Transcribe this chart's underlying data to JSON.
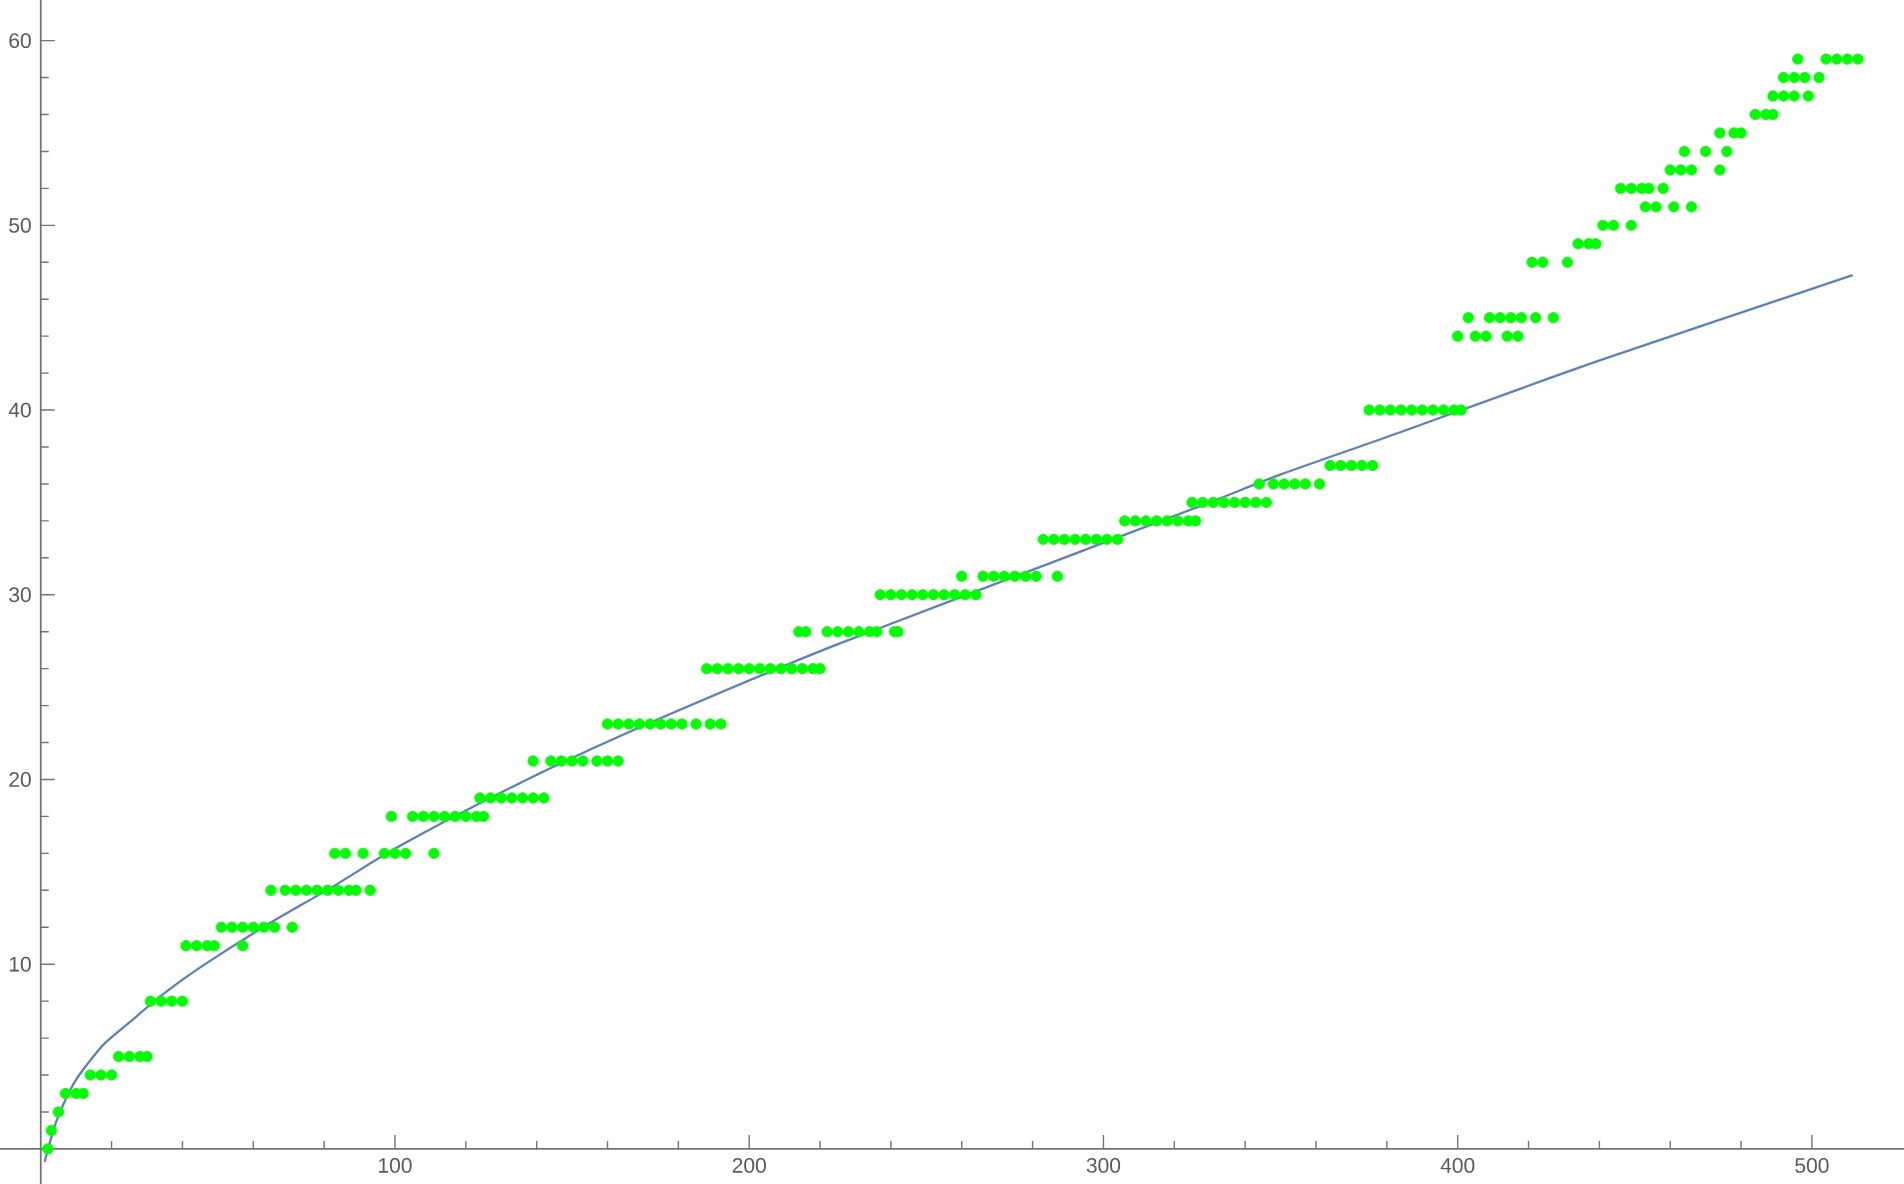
{
  "chart_data": {
    "type": "scatter",
    "xlim": [
      -11.5,
      526
    ],
    "ylim": [
      -1.9,
      62.2
    ],
    "xticks": [
      {
        "value": 20,
        "label": null
      },
      {
        "value": 40,
        "label": null
      },
      {
        "value": 60,
        "label": null
      },
      {
        "value": 80,
        "label": null
      },
      100,
      {
        "value": 120,
        "label": null
      },
      {
        "value": 140,
        "label": null
      },
      {
        "value": 160,
        "label": null
      },
      {
        "value": 180,
        "label": null
      },
      200,
      {
        "value": 220,
        "label": null
      },
      {
        "value": 240,
        "label": null
      },
      {
        "value": 260,
        "label": null
      },
      {
        "value": 280,
        "label": null
      },
      300,
      {
        "value": 320,
        "label": null
      },
      {
        "value": 340,
        "label": null
      },
      {
        "value": 360,
        "label": null
      },
      {
        "value": 380,
        "label": null
      },
      400,
      {
        "value": 420,
        "label": null
      },
      {
        "value": 440,
        "label": null
      },
      {
        "value": 460,
        "label": null
      },
      {
        "value": 480,
        "label": null
      },
      500
    ],
    "yticks": [
      {
        "value": 2,
        "label": null
      },
      {
        "value": 4,
        "label": null
      },
      {
        "value": 6,
        "label": null
      },
      {
        "value": 8,
        "label": null
      },
      10,
      {
        "value": 12,
        "label": null
      },
      {
        "value": 14,
        "label": null
      },
      {
        "value": 16,
        "label": null
      },
      {
        "value": 18,
        "label": null
      },
      20,
      {
        "value": 22,
        "label": null
      },
      {
        "value": 24,
        "label": null
      },
      {
        "value": 26,
        "label": null
      },
      {
        "value": 28,
        "label": null
      },
      30,
      {
        "value": 32,
        "label": null
      },
      {
        "value": 34,
        "label": null
      },
      {
        "value": 36,
        "label": null
      },
      {
        "value": 38,
        "label": null
      },
      40,
      {
        "value": 42,
        "label": null
      },
      {
        "value": 44,
        "label": null
      },
      {
        "value": 46,
        "label": null
      },
      {
        "value": 48,
        "label": null
      },
      50,
      {
        "value": 52,
        "label": null
      },
      {
        "value": 54,
        "label": null
      },
      {
        "value": 56,
        "label": null
      },
      {
        "value": 58,
        "label": null
      },
      60
    ],
    "series": [
      {
        "color": "#00ff00",
        "marker": "circle",
        "x": [
          2,
          3,
          5,
          7,
          10,
          12,
          14,
          17,
          20,
          22,
          25,
          28,
          30,
          31,
          34,
          37,
          40,
          41,
          44,
          47,
          49,
          57,
          51,
          54,
          57,
          60,
          63,
          66,
          71,
          65,
          69,
          72,
          75,
          78,
          81,
          84,
          87,
          89,
          93,
          83,
          86,
          91,
          97,
          100,
          103,
          111,
          99,
          105,
          108,
          111,
          114,
          117,
          120,
          123,
          125,
          124,
          127,
          130,
          133,
          136,
          139,
          142,
          139,
          144,
          147,
          150,
          153,
          157,
          160,
          163,
          160,
          163,
          166,
          169,
          172,
          175,
          178,
          181,
          185,
          189,
          192,
          188,
          191,
          194,
          197,
          200,
          203,
          206,
          209,
          212,
          215,
          218,
          220,
          214,
          216,
          222,
          225,
          228,
          231,
          234,
          236,
          241,
          242,
          237,
          240,
          243,
          246,
          249,
          252,
          255,
          258,
          261,
          264,
          260,
          266,
          269,
          272,
          275,
          278,
          281,
          287,
          283,
          286,
          289,
          292,
          295,
          298,
          301,
          304,
          306,
          309,
          312,
          315,
          318,
          321,
          324,
          326,
          325,
          328,
          331,
          334,
          337,
          340,
          343,
          346,
          344,
          348,
          351,
          354,
          357,
          361,
          364,
          367,
          370,
          373,
          376,
          375,
          378,
          381,
          384,
          387,
          390,
          393,
          396,
          399,
          401,
          400,
          405,
          408,
          414,
          417,
          403,
          409,
          412,
          415,
          418,
          422,
          427,
          421,
          424,
          431,
          434,
          437,
          439,
          441,
          444,
          449,
          453,
          456,
          461,
          466,
          446,
          449,
          452,
          454,
          458,
          460,
          463,
          466,
          474,
          464,
          470,
          476,
          474,
          478,
          480,
          484,
          487,
          489,
          489,
          492,
          495,
          499,
          492,
          495,
          498,
          502,
          496,
          504,
          507,
          510,
          513
        ],
        "values": [
          0,
          1,
          2,
          3,
          3,
          3,
          4,
          4,
          4,
          5,
          5,
          5,
          5,
          8,
          8,
          8,
          8,
          11,
          11,
          11,
          11,
          11,
          12,
          12,
          12,
          12,
          12,
          12,
          12,
          14,
          14,
          14,
          14,
          14,
          14,
          14,
          14,
          14,
          14,
          16,
          16,
          16,
          16,
          16,
          16,
          16,
          18,
          18,
          18,
          18,
          18,
          18,
          18,
          18,
          18,
          19,
          19,
          19,
          19,
          19,
          19,
          19,
          21,
          21,
          21,
          21,
          21,
          21,
          21,
          21,
          23,
          23,
          23,
          23,
          23,
          23,
          23,
          23,
          23,
          23,
          23,
          26,
          26,
          26,
          26,
          26,
          26,
          26,
          26,
          26,
          26,
          26,
          26,
          28,
          28,
          28,
          28,
          28,
          28,
          28,
          28,
          28,
          28,
          30,
          30,
          30,
          30,
          30,
          30,
          30,
          30,
          30,
          30,
          31,
          31,
          31,
          31,
          31,
          31,
          31,
          31,
          33,
          33,
          33,
          33,
          33,
          33,
          33,
          33,
          34,
          34,
          34,
          34,
          34,
          34,
          34,
          34,
          35,
          35,
          35,
          35,
          35,
          35,
          35,
          35,
          36,
          36,
          36,
          36,
          36,
          36,
          37,
          37,
          37,
          37,
          37,
          40,
          40,
          40,
          40,
          40,
          40,
          40,
          40,
          40,
          40,
          44,
          44,
          44,
          44,
          44,
          45,
          45,
          45,
          45,
          45,
          45,
          45,
          48,
          48,
          48,
          49,
          49,
          49,
          50,
          50,
          50,
          51,
          51,
          51,
          51,
          52,
          52,
          52,
          52,
          52,
          53,
          53,
          53,
          53,
          54,
          54,
          54,
          55,
          55,
          55,
          56,
          56,
          56,
          57,
          57,
          57,
          57,
          58,
          58,
          58,
          58,
          59,
          59,
          59,
          59,
          59
        ]
      },
      {
        "type": "line",
        "color": "#5e81b5",
        "marker": "none",
        "x": [
          1.1,
          3.4,
          5,
          7.1,
          9.5,
          12.8,
          18,
          26,
          34,
          44.8,
          63.6,
          82.5,
          101.3,
          135.2,
          165.3,
          214.3,
          236.9,
          282,
          327.3,
          349.9,
          383.8,
          440.3,
          511.5
        ],
        "values": [
          -0.7,
          0.9,
          1.8,
          2.7,
          3.6,
          4.5,
          5.7,
          7.0,
          8.3,
          9.8,
          12.1,
          14.2,
          16.4,
          19.8,
          22.5,
          26.5,
          28.2,
          31.5,
          34.8,
          36.5,
          38.8,
          42.7,
          47.3
        ]
      }
    ]
  }
}
